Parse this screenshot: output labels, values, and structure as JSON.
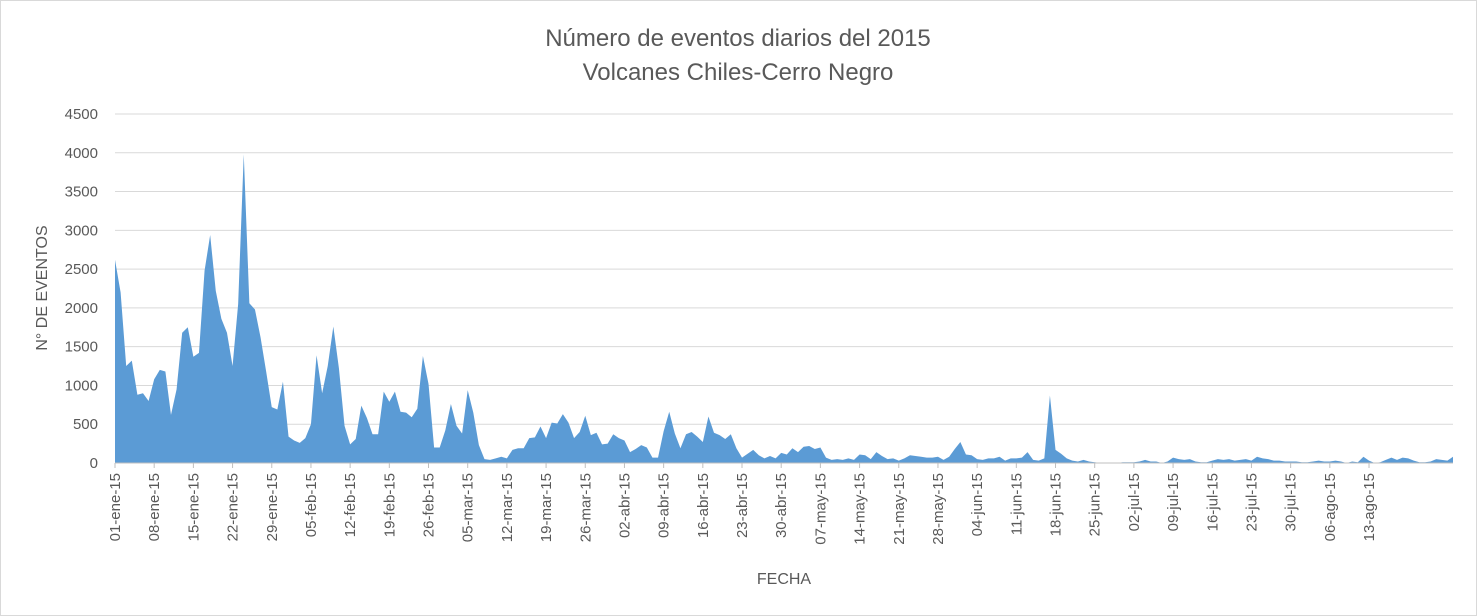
{
  "chart_data": {
    "type": "area",
    "title": "Número de eventos diarios del 2015",
    "subtitle": "Volcanes Chiles-Cerro Negro",
    "xlabel": "FECHA",
    "ylabel": "N° DE EVENTOS",
    "ylim": [
      0,
      4500
    ],
    "yticks": [
      0,
      500,
      1000,
      1500,
      2000,
      2500,
      3000,
      3500,
      4000,
      4500
    ],
    "grid": true,
    "legend": "none",
    "color": "#5b9bd5",
    "x_start_label": "01-ene-15",
    "x_tick_step_days": 7,
    "x_tick_labels": [
      "01-ene-15",
      "08-ene-15",
      "15-ene-15",
      "22-ene-15",
      "29-ene-15",
      "05-feb-15",
      "12-feb-15",
      "19-feb-15",
      "26-feb-15",
      "05-mar-15",
      "12-mar-15",
      "19-mar-15",
      "26-mar-15",
      "02-abr-15",
      "09-abr-15",
      "16-abr-15",
      "23-abr-15",
      "30-abr-15",
      "07-may-15",
      "14-may-15",
      "21-may-15",
      "28-may-15",
      "04-jun-15",
      "11-jun-15",
      "18-jun-15",
      "25-jun-15",
      "02-jul-15",
      "09-jul-15",
      "16-jul-15",
      "23-jul-15",
      "30-jul-15",
      "06-ago-15",
      "13-ago-15"
    ],
    "values": [
      2620,
      2200,
      1250,
      1320,
      880,
      900,
      800,
      1080,
      1200,
      1180,
      620,
      950,
      1680,
      1750,
      1370,
      1420,
      2480,
      2940,
      2220,
      1860,
      1680,
      1250,
      2050,
      3980,
      2060,
      1980,
      1620,
      1180,
      720,
      690,
      1050,
      340,
      290,
      260,
      320,
      500,
      1390,
      900,
      1250,
      1760,
      1220,
      480,
      240,
      310,
      740,
      580,
      370,
      370,
      920,
      790,
      920,
      660,
      650,
      590,
      700,
      1380,
      1020,
      200,
      200,
      420,
      760,
      480,
      380,
      940,
      650,
      230,
      50,
      40,
      60,
      80,
      60,
      170,
      190,
      190,
      320,
      330,
      470,
      320,
      520,
      510,
      630,
      520,
      320,
      400,
      610,
      360,
      390,
      240,
      250,
      370,
      320,
      290,
      140,
      180,
      230,
      200,
      70,
      70,
      410,
      660,
      380,
      190,
      370,
      400,
      340,
      270,
      600,
      390,
      360,
      310,
      370,
      190,
      70,
      120,
      170,
      100,
      60,
      90,
      60,
      130,
      110,
      190,
      140,
      210,
      220,
      180,
      200,
      70,
      40,
      50,
      40,
      60,
      40,
      110,
      100,
      50,
      140,
      90,
      50,
      60,
      30,
      60,
      100,
      90,
      80,
      70,
      70,
      80,
      40,
      80,
      180,
      270,
      110,
      100,
      50,
      40,
      60,
      60,
      80,
      30,
      60,
      60,
      70,
      140,
      40,
      30,
      60,
      870,
      170,
      120,
      60,
      30,
      20,
      40,
      20,
      10,
      0,
      0,
      0,
      0,
      10,
      10,
      10,
      20,
      40,
      20,
      20,
      0,
      20,
      70,
      50,
      40,
      50,
      20,
      10,
      10,
      30,
      50,
      40,
      50,
      30,
      40,
      50,
      30,
      80,
      60,
      50,
      30,
      30,
      20,
      20,
      20,
      10,
      10,
      20,
      30,
      20,
      20,
      30,
      20,
      0,
      20,
      10,
      80,
      30,
      0,
      10,
      40,
      70,
      40,
      70,
      60,
      30,
      10,
      10,
      20,
      50,
      40,
      30,
      80
    ]
  }
}
